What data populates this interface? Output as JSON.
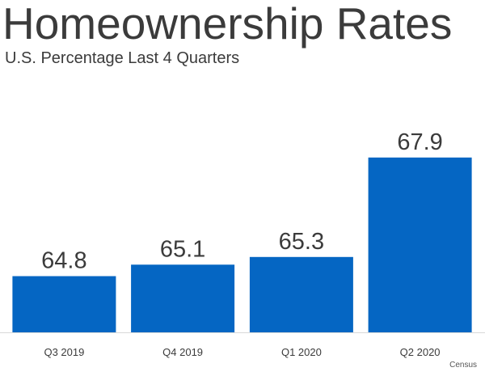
{
  "header": {
    "title": "Homeownership Rates",
    "subtitle": "U.S. Percentage Last 4 Quarters"
  },
  "source": "Census",
  "colors": {
    "bar": "#0566C3",
    "text": "#3b3b3b",
    "axis": "#d9d9d9"
  },
  "chart_data": {
    "type": "bar",
    "categories": [
      "Q3 2019",
      "Q4 2019",
      "Q1 2020",
      "Q2 2020"
    ],
    "values": [
      64.8,
      65.1,
      65.3,
      67.9
    ],
    "value_labels": [
      "64.8",
      "65.1",
      "65.3",
      "67.9"
    ],
    "title": "Homeownership Rates",
    "subtitle": "U.S. Percentage Last 4 Quarters",
    "xlabel": "",
    "ylabel": "",
    "y_axis_visible": false,
    "grid": false,
    "legend": "none"
  }
}
